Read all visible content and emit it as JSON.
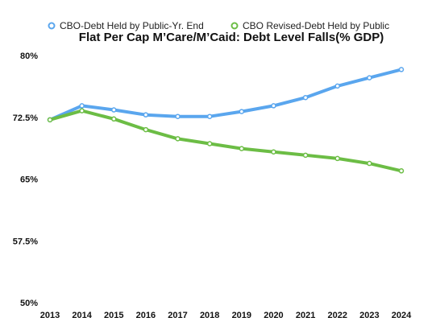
{
  "chart_data": {
    "type": "line",
    "title": "Flat Per Cap M’Care/M’Caid: Debt Level Falls(% GDP)",
    "xlabel": "",
    "ylabel": "",
    "x": [
      "2013",
      "2014",
      "2015",
      "2016",
      "2017",
      "2018",
      "2019",
      "2020",
      "2021",
      "2022",
      "2023",
      "2024"
    ],
    "y_ticks": [
      "80%",
      "72.5%",
      "65%",
      "57.5%",
      "50%"
    ],
    "ylim": [
      50,
      80
    ],
    "grid": false,
    "legend_position": "top",
    "series": [
      {
        "name": "CBO-Debt Held by Public-Yr. End",
        "color": "#5aa6ee",
        "values": [
          72.2,
          73.9,
          73.4,
          72.8,
          72.6,
          72.6,
          73.2,
          73.9,
          74.9,
          76.3,
          77.3,
          78.3
        ]
      },
      {
        "name": "CBO Revised-Debt Held by Public",
        "color": "#6cbd45",
        "values": [
          72.2,
          73.3,
          72.3,
          71.0,
          69.9,
          69.3,
          68.7,
          68.3,
          67.9,
          67.5,
          66.9,
          66.0
        ]
      }
    ]
  }
}
